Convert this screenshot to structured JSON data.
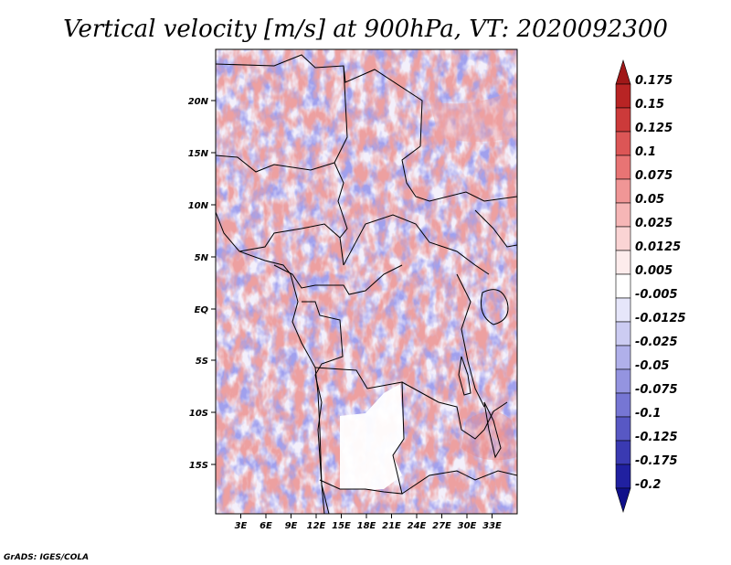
{
  "title": "Vertical velocity [m/s] at 900hPa, VT: 2020092300",
  "credit": "GrADS: IGES/COLA",
  "map": {
    "lon_range": [
      0,
      36
    ],
    "lat_range": [
      -20,
      25
    ],
    "x_ticks": [
      "3E",
      "6E",
      "9E",
      "12E",
      "15E",
      "18E",
      "21E",
      "24E",
      "27E",
      "30E",
      "33E"
    ],
    "y_ticks": [
      "20N",
      "15N",
      "10N",
      "5N",
      "EQ",
      "5S",
      "10S",
      "15S"
    ]
  },
  "colorbar": {
    "labels": [
      "0.175",
      "0.15",
      "0.125",
      "0.1",
      "0.075",
      "0.05",
      "0.025",
      "0.0125",
      "0.005",
      "-0.005",
      "-0.0125",
      "-0.025",
      "-0.05",
      "-0.075",
      "-0.1",
      "-0.125",
      "-0.175",
      "-0.2"
    ],
    "colors": [
      "#a01818",
      "#b82424",
      "#cc3a3a",
      "#dc5656",
      "#e87474",
      "#f09696",
      "#f6b6b6",
      "#fad4d4",
      "#fdecec",
      "#ffffff",
      "#e6e6fa",
      "#ccccf2",
      "#b0b0ea",
      "#9494e0",
      "#7676d4",
      "#5858c4",
      "#3a3ab2",
      "#2020a0",
      "#10108a"
    ]
  }
}
